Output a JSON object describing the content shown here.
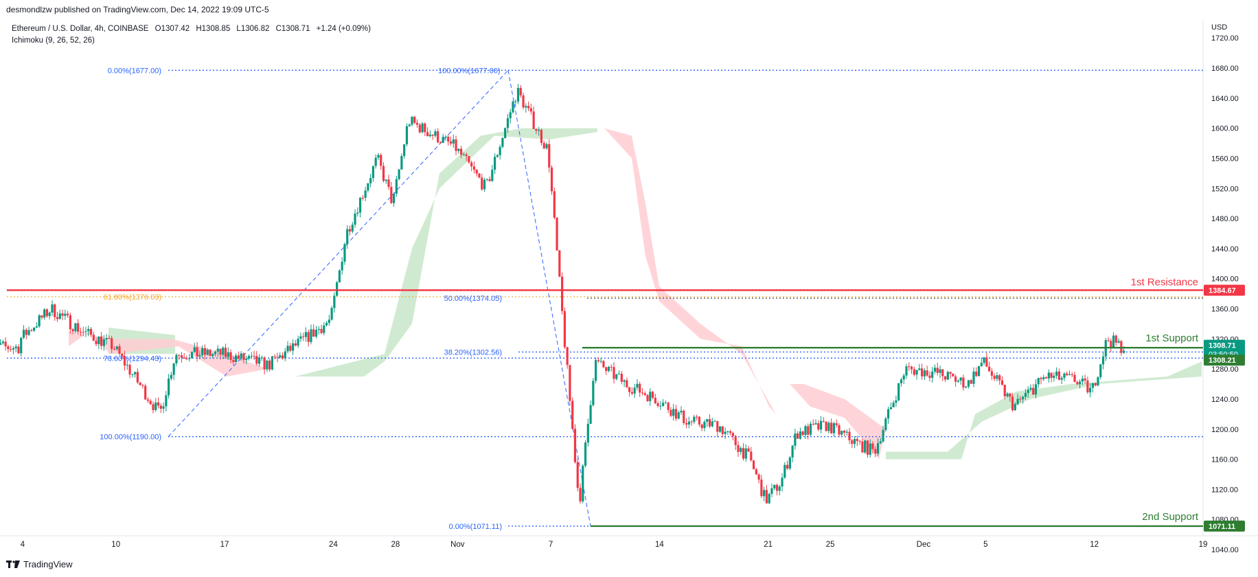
{
  "publisher": "desmondlzw published on TradingView.com, Dec 14, 2022 19:09 UTC-5",
  "header": {
    "symbol": "Ethereum / U.S. Dollar, 4h, COINBASE",
    "open": "O1307.42",
    "high": "H1308.85",
    "low": "L1306.82",
    "close": "C1308.71",
    "change": "+1.24 (+0.09%)",
    "indicator": "Ichimoku (9, 26, 52, 26)"
  },
  "currency": "USD",
  "footer_brand": "TradingView",
  "colors": {
    "up": "#089981",
    "down": "#f23645",
    "resistance": "#f23645",
    "support": "#2e7d32",
    "fib": "#2962ff",
    "fib_618": "#f5a623",
    "cloud_bull": "#c8e6c9",
    "cloud_bear": "#ffcdd2"
  },
  "chart_data": {
    "type": "candlestick",
    "ylim": [
      1020,
      1730
    ],
    "yticks": [
      1040,
      1080,
      1120,
      1160,
      1200,
      1240,
      1280,
      1320,
      1360,
      1400,
      1440,
      1480,
      1520,
      1560,
      1600,
      1640,
      1680,
      1720
    ],
    "xticks": [
      "4",
      "10",
      "17",
      "24",
      "28",
      "Nov",
      "7",
      "14",
      "21",
      "25",
      "Dec",
      "5",
      "12",
      "19"
    ],
    "price_series": [
      [
        "Oct 4",
        1320
      ],
      [
        "Oct 6",
        1360
      ],
      [
        "Oct 8",
        1330
      ],
      [
        "Oct 10",
        1310
      ],
      [
        "Oct 13",
        1220
      ],
      [
        "Oct 14",
        1300
      ],
      [
        "Oct 17",
        1300
      ],
      [
        "Oct 20",
        1285
      ],
      [
        "Oct 24",
        1345
      ],
      [
        "Oct 25",
        1460
      ],
      [
        "Oct 27",
        1560
      ],
      [
        "Oct 28",
        1500
      ],
      [
        "Oct 29",
        1610
      ],
      [
        "Nov 1",
        1575
      ],
      [
        "Nov 3",
        1520
      ],
      [
        "Nov 5",
        1650
      ],
      [
        "Nov 7",
        1570
      ],
      [
        "Nov 8",
        1330
      ],
      [
        "Nov 9",
        1100
      ],
      [
        "Nov 10",
        1290
      ],
      [
        "Nov 12",
        1260
      ],
      [
        "Nov 14",
        1240
      ],
      [
        "Nov 16",
        1210
      ],
      [
        "Nov 18",
        1205
      ],
      [
        "Nov 20",
        1160
      ],
      [
        "Nov 21",
        1105
      ],
      [
        "Nov 22",
        1130
      ],
      [
        "Nov 23",
        1195
      ],
      [
        "Nov 25",
        1205
      ],
      [
        "Nov 27",
        1180
      ],
      [
        "Nov 28",
        1170
      ],
      [
        "Nov 30",
        1280
      ],
      [
        "Dec 2",
        1275
      ],
      [
        "Dec 4",
        1260
      ],
      [
        "Dec 5",
        1290
      ],
      [
        "Dec 7",
        1230
      ],
      [
        "Dec 9",
        1270
      ],
      [
        "Dec 11",
        1265
      ],
      [
        "Dec 12",
        1250
      ],
      [
        "Dec 13",
        1320
      ],
      [
        "Dec 14",
        1308.71
      ]
    ],
    "fibonacci": [
      {
        "label": "0.00%(1677.00)",
        "value": 1677.0
      },
      {
        "label": "100.00%(1677.00)",
        "value": 1677.0
      },
      {
        "label": "61.80%(1376.03)",
        "value": 1376.03
      },
      {
        "label": "50.00%(1374.05)",
        "value": 1374.05
      },
      {
        "label": "38.20%(1302.56)",
        "value": 1302.56
      },
      {
        "label": "78.60%(1294.43)",
        "value": 1294.43
      },
      {
        "label": "100.00%(1190.00)",
        "value": 1190.0
      },
      {
        "label": "0.00%(1071.11)",
        "value": 1071.11
      }
    ],
    "levels": [
      {
        "name": "1st Resistance",
        "value": 1384.67,
        "badge": "1384.67"
      },
      {
        "name": "1st Support",
        "value": 1308.21,
        "badge": "1308.21"
      },
      {
        "name": "2nd Support",
        "value": 1071.11,
        "badge": "1071.11"
      }
    ],
    "last_price": {
      "value": 1308.71,
      "badge": "1308.71",
      "countdown": "03:50:50"
    }
  }
}
